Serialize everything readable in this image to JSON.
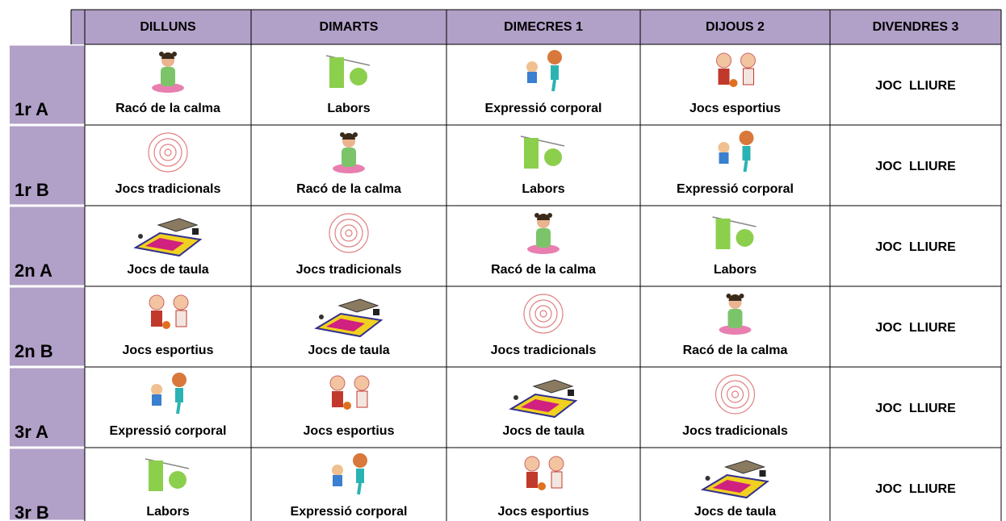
{
  "header": {
    "columns": [
      "DILLUNS",
      "DIMARTS",
      "DIMECRES 1",
      "DIJOUS 2",
      "DIVENDRES 3"
    ]
  },
  "rows": [
    {
      "label": "1r A",
      "cells": [
        "Racó de la calma",
        "Labors",
        "Expressió corporal",
        "Jocs esportius",
        "JOC  LLIURE"
      ]
    },
    {
      "label": "1r B",
      "cells": [
        "Jocs tradicionals",
        "Racó de la calma",
        "Labors",
        "Expressió corporal",
        "JOC  LLIURE"
      ]
    },
    {
      "label": "2n A",
      "cells": [
        "Jocs de taula",
        "Jocs tradicionals",
        "Racó de la calma",
        "Labors",
        "JOC  LLIURE"
      ]
    },
    {
      "label": "2n B",
      "cells": [
        "Jocs esportius",
        "Jocs de taula",
        "Jocs tradicionals",
        "Racó de la calma",
        "JOC  LLIURE"
      ]
    },
    {
      "label": "3r A",
      "cells": [
        "Expressió corporal",
        "Jocs esportius",
        "Jocs de taula",
        "Jocs tradicionals",
        "JOC  LLIURE"
      ]
    },
    {
      "label": "3r B",
      "cells": [
        "Labors",
        "Expressió corporal",
        "Jocs esportius",
        "Jocs de taula",
        "JOC  LLIURE"
      ]
    }
  ]
}
